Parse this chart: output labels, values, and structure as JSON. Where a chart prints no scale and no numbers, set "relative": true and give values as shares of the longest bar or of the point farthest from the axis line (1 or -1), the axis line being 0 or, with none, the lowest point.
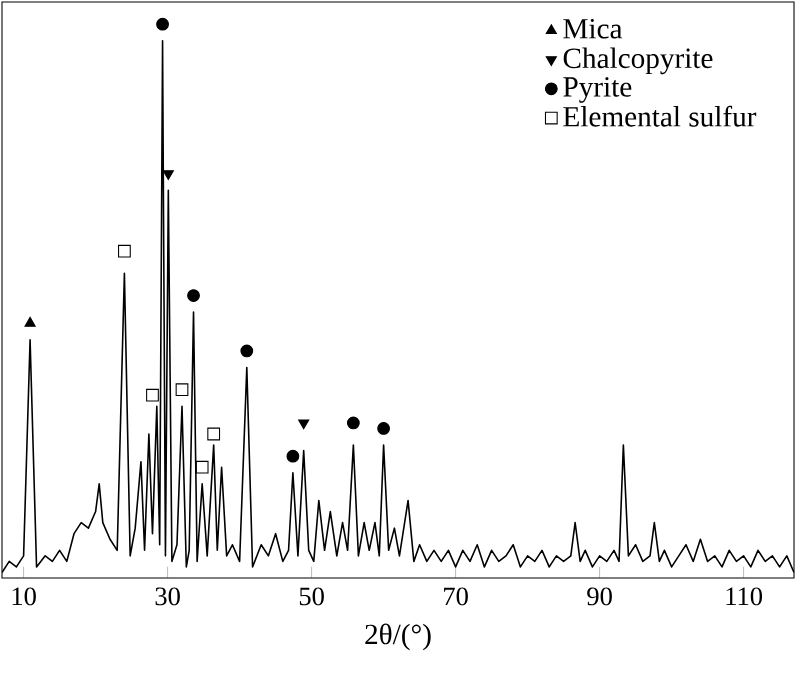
{
  "chart_data": {
    "type": "line",
    "relative": true,
    "xlabel": "2θ/(°)",
    "xlim": [
      7,
      117
    ],
    "xticks": [
      10,
      30,
      50,
      70,
      90,
      110
    ],
    "legend": "top right",
    "series": [
      {
        "color": "#000000",
        "marker": "none",
        "line_style": "solid",
        "x": [
          7,
          8,
          9,
          10,
          10.9,
          11.8,
          13,
          14,
          15,
          16,
          17,
          18,
          19,
          20,
          20.5,
          21,
          22,
          23,
          24.0,
          24.8,
          25.5,
          26.3,
          26.8,
          27.4,
          27.9,
          28.5,
          28.9,
          29.3,
          29.7,
          30.1,
          30.6,
          31.3,
          32.0,
          32.6,
          33.0,
          33.6,
          34.1,
          34.8,
          35.5,
          36.4,
          36.9,
          37.5,
          38.2,
          39,
          40,
          41.0,
          41.8,
          43,
          44,
          45,
          46,
          46.8,
          47.4,
          48.1,
          48.9,
          49.6,
          50.3,
          51.0,
          51.8,
          52.6,
          53.5,
          54.3,
          55,
          55.8,
          56.5,
          57.3,
          58,
          58.8,
          59.4,
          60.0,
          60.7,
          61.5,
          62.2,
          63.4,
          64.2,
          65,
          66,
          67,
          68,
          69,
          70,
          71,
          72,
          73,
          74,
          75,
          76,
          77,
          78,
          79,
          80,
          81,
          82,
          83,
          84,
          85,
          86,
          86.6,
          87.3,
          88,
          89,
          90,
          91,
          92,
          92.7,
          93.3,
          94,
          95,
          96,
          97,
          97.6,
          98.3,
          99,
          100,
          101,
          102,
          103,
          104,
          105,
          106,
          107,
          108,
          109,
          110,
          111,
          112,
          113,
          114,
          115,
          116,
          117
        ],
        "values": [
          0.01,
          0.03,
          0.02,
          0.04,
          0.43,
          0.02,
          0.04,
          0.03,
          0.05,
          0.03,
          0.08,
          0.1,
          0.09,
          0.12,
          0.17,
          0.1,
          0.07,
          0.05,
          0.55,
          0.04,
          0.09,
          0.21,
          0.05,
          0.26,
          0.08,
          0.31,
          0.06,
          0.97,
          0.04,
          0.7,
          0.03,
          0.06,
          0.31,
          0.02,
          0.05,
          0.48,
          0.03,
          0.17,
          0.04,
          0.24,
          0.05,
          0.2,
          0.04,
          0.06,
          0.03,
          0.38,
          0.02,
          0.06,
          0.04,
          0.08,
          0.03,
          0.05,
          0.19,
          0.04,
          0.23,
          0.05,
          0.03,
          0.14,
          0.05,
          0.12,
          0.04,
          0.1,
          0.05,
          0.24,
          0.04,
          0.1,
          0.05,
          0.1,
          0.04,
          0.24,
          0.05,
          0.09,
          0.04,
          0.14,
          0.03,
          0.06,
          0.03,
          0.05,
          0.03,
          0.05,
          0.02,
          0.05,
          0.03,
          0.06,
          0.02,
          0.05,
          0.03,
          0.04,
          0.06,
          0.02,
          0.04,
          0.03,
          0.05,
          0.02,
          0.04,
          0.03,
          0.04,
          0.1,
          0.03,
          0.05,
          0.02,
          0.04,
          0.03,
          0.05,
          0.03,
          0.24,
          0.04,
          0.06,
          0.03,
          0.04,
          0.1,
          0.03,
          0.05,
          0.02,
          0.04,
          0.06,
          0.03,
          0.07,
          0.03,
          0.04,
          0.02,
          0.05,
          0.03,
          0.04,
          0.02,
          0.05,
          0.03,
          0.04,
          0.02,
          0.04,
          0.01
        ]
      },
      {
        "type": "scatter",
        "name": "Mica",
        "color": "#000000",
        "marker": "triangle",
        "x": [
          10.9
        ],
        "values": [
          0.46
        ]
      },
      {
        "type": "scatter",
        "name": "Chalcopyrite",
        "color": "#000000",
        "marker": "triangle down",
        "x": [
          30.1,
          48.9
        ],
        "values": [
          0.73,
          0.28
        ]
      },
      {
        "type": "scatter",
        "name": "Pyrite",
        "color": "#000000",
        "marker": "circle",
        "x": [
          29.3,
          33.6,
          41.0,
          47.4,
          55.8,
          60.0
        ],
        "values": [
          1.0,
          0.51,
          0.41,
          0.22,
          0.28,
          0.27
        ]
      },
      {
        "type": "scatter",
        "name": "Elemental sulfur",
        "color": "#000000",
        "marker": "square",
        "x": [
          24.0,
          27.9,
          32.0,
          34.8,
          36.4
        ],
        "values": [
          0.59,
          0.33,
          0.34,
          0.2,
          0.26
        ]
      }
    ]
  }
}
